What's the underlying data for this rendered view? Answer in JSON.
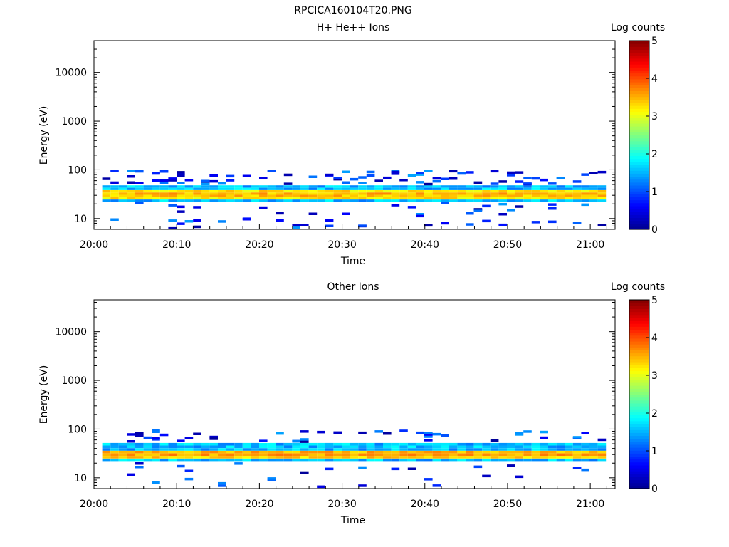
{
  "figure": {
    "title": "RPCICA160104T20.PNG"
  },
  "colors": {
    "background": "#ffffff",
    "axis": "#000000",
    "colormap": [
      "#00008f",
      "#0000ff",
      "#0080ff",
      "#00ffff",
      "#80ff80",
      "#ffff00",
      "#ff8000",
      "#ff0000",
      "#800000"
    ]
  },
  "chart_data": [
    {
      "type": "heatmap",
      "title": "H+ He++ Ions",
      "xlabel": "Time",
      "ylabel": "Energy (eV)",
      "x_range": [
        "20:00",
        "21:03"
      ],
      "x_ticks": [
        "20:00",
        "20:10",
        "20:20",
        "20:30",
        "20:40",
        "20:50",
        "21:00"
      ],
      "y_scale": "log",
      "y_range": [
        6,
        45000
      ],
      "y_ticks": [
        10,
        100,
        1000,
        10000
      ],
      "y_tick_labels": [
        "10",
        "100",
        "1000",
        "10000"
      ],
      "colorbar": {
        "label": "Log counts",
        "range": [
          0,
          5
        ],
        "ticks": [
          "0",
          "1",
          "2",
          "3",
          "4",
          "5"
        ]
      },
      "main_band": {
        "energy_ev": [
          22,
          48
        ],
        "core_energy_ev": [
          26,
          38
        ],
        "peak_log_counts": 3.8
      },
      "sparse_values": "scattered low-count bins (log counts ~0-1.5) between 6 and 95 eV",
      "sparse_seed": 7,
      "sparse_count": 140
    },
    {
      "type": "heatmap",
      "title": "Other Ions",
      "xlabel": "Time",
      "ylabel": "Energy (eV)",
      "x_range": [
        "20:00",
        "21:03"
      ],
      "x_ticks": [
        "20:00",
        "20:10",
        "20:20",
        "20:30",
        "20:40",
        "20:50",
        "21:00"
      ],
      "y_scale": "log",
      "y_range": [
        6,
        45000
      ],
      "y_ticks": [
        10,
        100,
        1000,
        10000
      ],
      "y_tick_labels": [
        "10",
        "100",
        "1000",
        "10000"
      ],
      "colorbar": {
        "label": "Log counts",
        "range": [
          0,
          5
        ],
        "ticks": [
          "0",
          "1",
          "2",
          "3",
          "4",
          "5"
        ]
      },
      "main_band": {
        "energy_ev": [
          22,
          52
        ],
        "core_energy_ev": [
          26,
          38
        ],
        "peak_log_counts": 3.9
      },
      "sparse_values": "scattered low-count bins (log counts ~0-1.5) between 7 and 90 eV",
      "sparse_seed": 13,
      "sparse_count": 75
    }
  ]
}
